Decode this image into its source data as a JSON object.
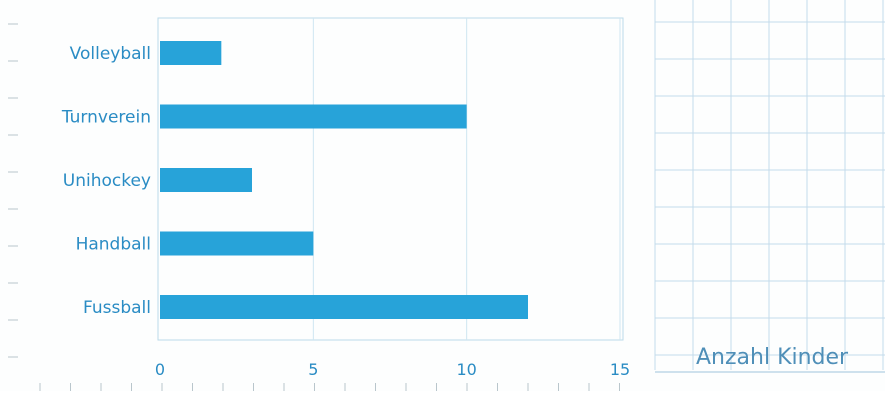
{
  "chart_data": {
    "type": "bar",
    "orientation": "horizontal",
    "categories": [
      "Volleyball",
      "Turnverein",
      "Unihockey",
      "Handball",
      "Fussball"
    ],
    "values": [
      2,
      10,
      3,
      5,
      12
    ],
    "xlabel": "Anzahl Kinder",
    "ylabel": "",
    "title": "",
    "xlim": [
      0,
      15
    ],
    "xticks": [
      0,
      5,
      10,
      15
    ],
    "grid": true,
    "legend": "none"
  },
  "colors": {
    "bar": "#27a3d9",
    "label_text": "#2a8cc4",
    "grid": "#cfe6f1",
    "frame": "#bcdbe9",
    "axis_label": "#4f8fb8"
  }
}
